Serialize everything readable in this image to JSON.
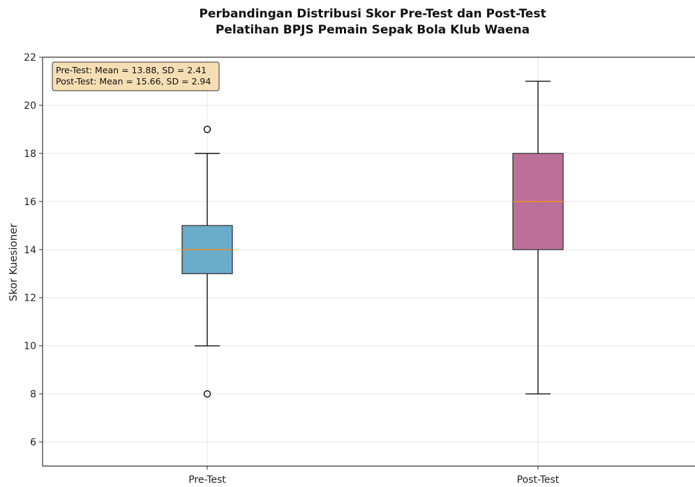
{
  "chart_data": {
    "type": "box",
    "title_line1": "Perbandingan Distribusi Skor Pre-Test dan Post-Test",
    "title_line2": "Pelatihan BPJS Pemain Sepak Bola Klub Waena",
    "xlabel": "",
    "ylabel": "Skor Kuesioner",
    "ylim": [
      5,
      22
    ],
    "yticks": [
      6,
      8,
      10,
      12,
      14,
      16,
      18,
      20,
      22
    ],
    "grid": true,
    "categories": [
      "Pre-Test",
      "Post-Test"
    ],
    "series": [
      {
        "name": "Pre-Test",
        "whisker_low": 10,
        "q1": 13,
        "median": 14,
        "q3": 15,
        "whisker_high": 18,
        "outliers": [
          8,
          19
        ],
        "color": "#5ba3c4"
      },
      {
        "name": "Post-Test",
        "whisker_low": 8,
        "q1": 14,
        "median": 16,
        "q3": 18,
        "whisker_high": 21,
        "outliers": [],
        "color": "#b5608e"
      }
    ],
    "median_color": "#f08a24",
    "stats_box": {
      "line1": "Pre-Test: Mean = 13.88, SD = 2.41",
      "line2": "Post-Test: Mean = 15.66, SD = 2.94",
      "fill": "#f5deb3"
    }
  }
}
